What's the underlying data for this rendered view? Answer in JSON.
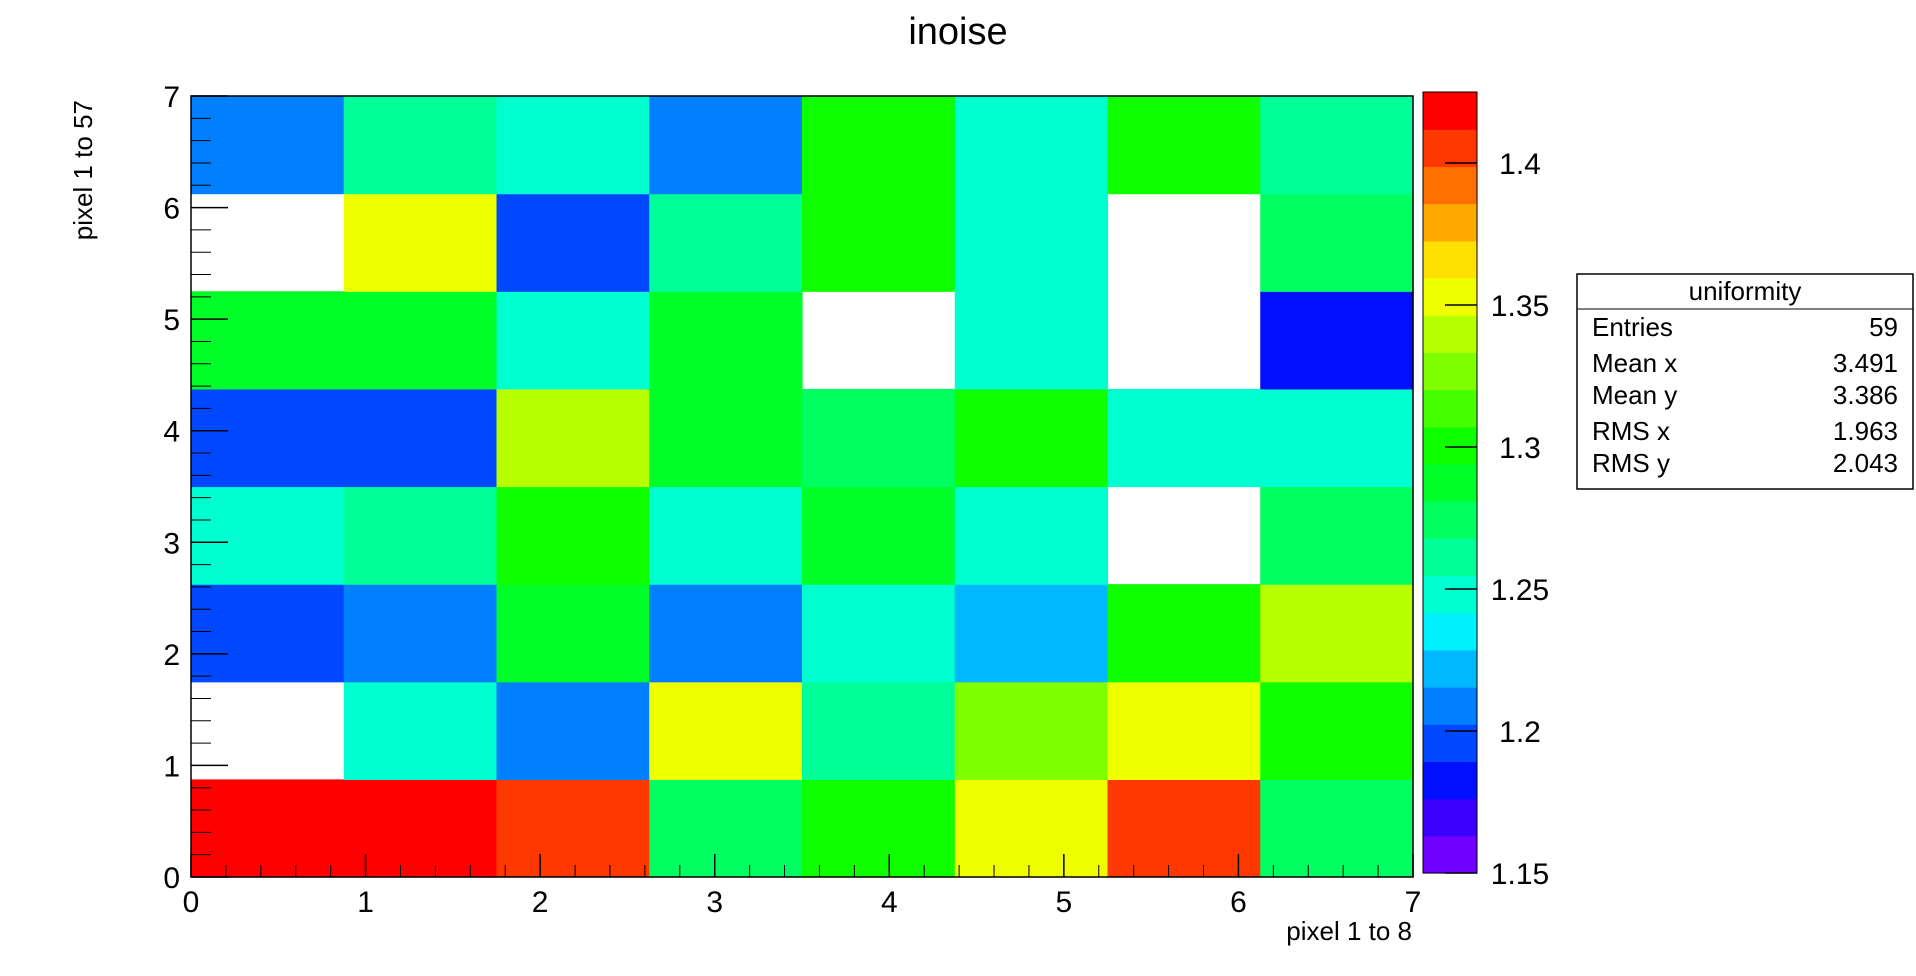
{
  "chart_data": {
    "type": "heatmap",
    "title": "inoise",
    "xlabel": "pixel 1 to 8",
    "ylabel": "pixel 1 to 57",
    "xlim": [
      0,
      7
    ],
    "ylim": [
      0,
      7
    ],
    "x_ticks": [
      0,
      1,
      2,
      3,
      4,
      5,
      6,
      7
    ],
    "y_ticks": [
      0,
      1,
      2,
      3,
      4,
      5,
      6,
      7
    ],
    "nx": 8,
    "ny": 8,
    "zlim": [
      1.15,
      1.425
    ],
    "z_ticks": [
      1.15,
      1.2,
      1.25,
      1.3,
      1.35,
      1.4
    ],
    "z_tick_labels": [
      "1.15",
      "1.2",
      "1.25",
      "1.3",
      "1.35",
      "1.4"
    ],
    "palette": [
      "#7000ff",
      "#3a00ff",
      "#0010ff",
      "#0048ff",
      "#0080ff",
      "#00b8ff",
      "#00f0ff",
      "#00ffd0",
      "#00ff98",
      "#00ff60",
      "#00ff28",
      "#10ff00",
      "#48ff00",
      "#80ff00",
      "#b8ff00",
      "#f0ff00",
      "#ffe000",
      "#ffa800",
      "#ff7000",
      "#ff3800",
      "#ff0000"
    ],
    "values_rows_bottom_to_top": [
      [
        1.425,
        1.425,
        1.405,
        1.28,
        1.305,
        1.35,
        1.405,
        1.28
      ],
      [
        null,
        1.245,
        1.21,
        1.35,
        1.26,
        1.325,
        1.35,
        1.3
      ],
      [
        1.195,
        1.21,
        1.285,
        1.21,
        1.245,
        1.225,
        1.3,
        1.335
      ],
      [
        1.245,
        1.265,
        1.305,
        1.245,
        1.285,
        1.245,
        null,
        1.275
      ],
      [
        1.195,
        1.195,
        1.335,
        1.285,
        1.27,
        1.295,
        1.245,
        1.245
      ],
      [
        1.29,
        1.29,
        1.245,
        1.285,
        null,
        1.245,
        null,
        1.18
      ],
      [
        null,
        1.35,
        1.195,
        1.26,
        1.305,
        1.245,
        null,
        1.28
      ],
      [
        1.21,
        1.265,
        1.245,
        1.21,
        1.305,
        1.245,
        1.305,
        1.26
      ]
    ],
    "stats": {
      "name": "uniformity",
      "rows": [
        {
          "label": "Entries",
          "value": "59"
        },
        {
          "label": "Mean x",
          "value": "3.491"
        },
        {
          "label": "Mean y",
          "value": "3.386"
        },
        {
          "label": "RMS x",
          "value": "1.963"
        },
        {
          "label": "RMS y",
          "value": "2.043"
        }
      ]
    }
  }
}
